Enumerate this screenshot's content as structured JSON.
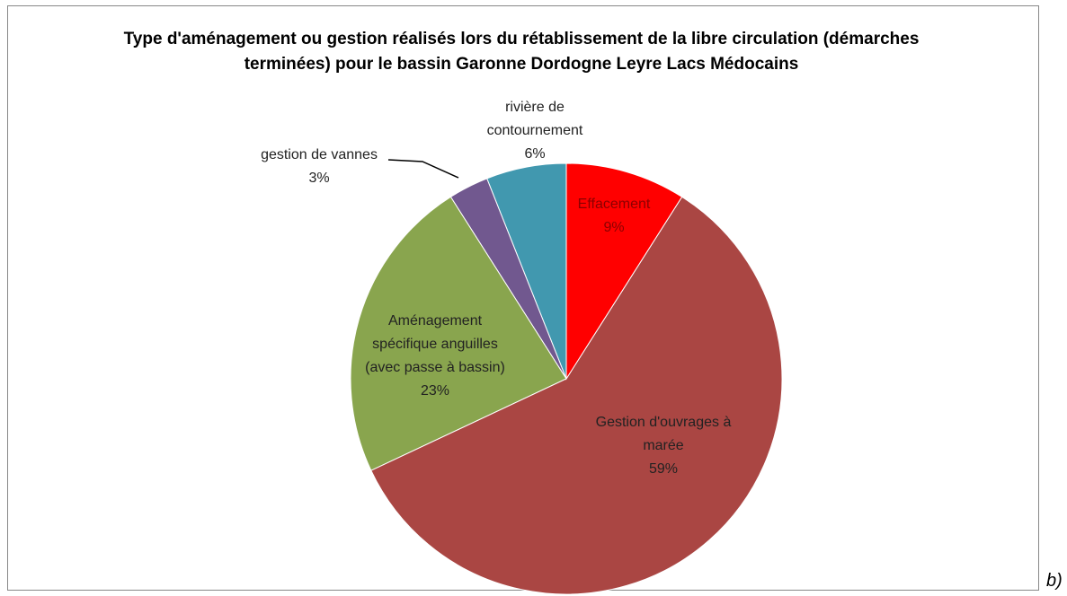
{
  "chart_data": {
    "type": "pie",
    "title": "Type d'aménagement ou gestion réalisés lors du rétablissement de la libre circulation (démarches terminées) pour le bassin Garonne Dordogne Leyre Lacs Médocains",
    "categories": [
      "Effacement",
      "Gestion d'ouvrages à marée",
      "Aménagement spécifique anguilles (avec passe à bassin)",
      "gestion de vannes",
      "rivière de contournement"
    ],
    "values": [
      9,
      59,
      23,
      3,
      6
    ],
    "value_labels": [
      "9%",
      "59%",
      "23%",
      "3%",
      "6%"
    ],
    "colors": [
      "#ff0000",
      "#aa4643",
      "#89a54e",
      "#71588f",
      "#4198af"
    ]
  },
  "caption": "b)"
}
